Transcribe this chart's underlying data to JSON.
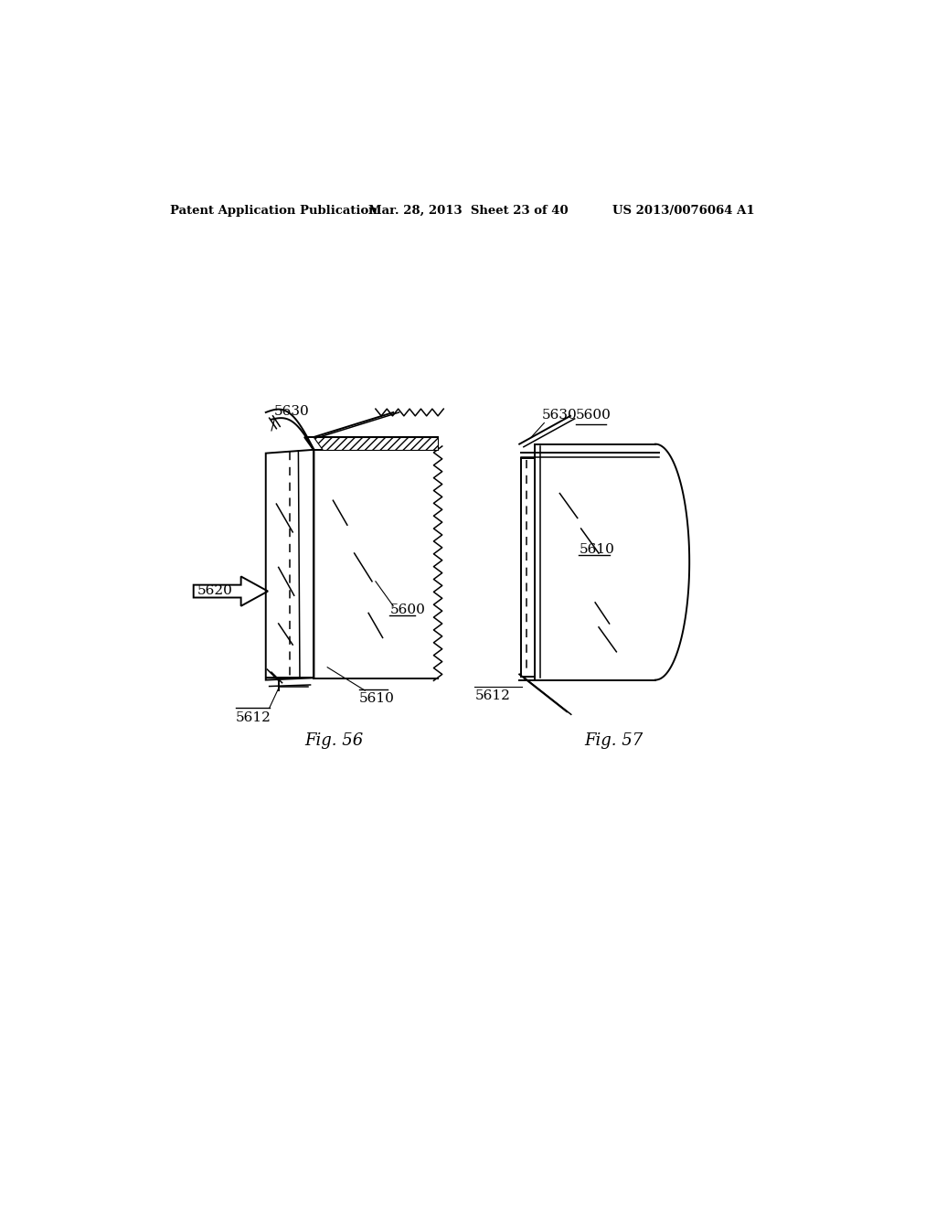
{
  "bg_color": "#ffffff",
  "text_color": "#000000",
  "header_left": "Patent Application Publication",
  "header_center": "Mar. 28, 2013  Sheet 23 of 40",
  "header_right": "US 2013/0076064 A1",
  "fig56_label": "Fig. 56",
  "fig57_label": "Fig. 57",
  "labels": {
    "5600": "5600",
    "5610": "5610",
    "5612": "5612",
    "5620": "5620",
    "5630": "5630"
  }
}
